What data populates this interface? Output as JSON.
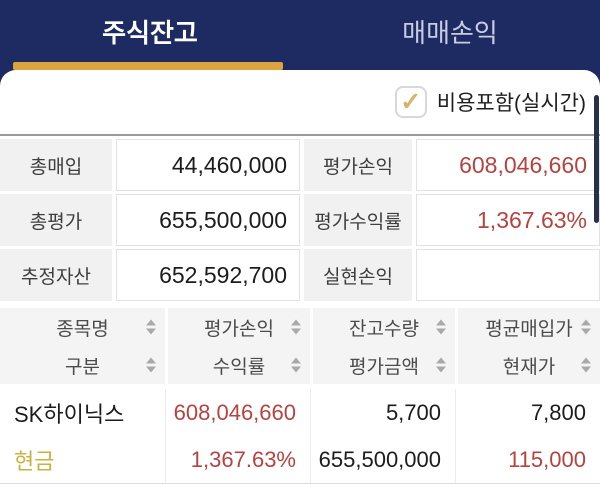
{
  "tabs": {
    "stock_balance": "주식잔고",
    "trading_pl": "매매손익"
  },
  "filter": {
    "checkbox_label": "비용포함(실시간)",
    "checked": true,
    "check_glyph": "✓"
  },
  "summary": {
    "rows": [
      {
        "left_label": "총매입",
        "left_value": "44,460,000",
        "right_label": "평가손익",
        "right_value": "608,046,660"
      },
      {
        "left_label": "총평가",
        "left_value": "655,500,000",
        "right_label": "평가수익률",
        "right_value": "1,367.63%"
      },
      {
        "left_label": "추정자산",
        "left_value": "652,592,700",
        "right_label": "실현손익",
        "right_value": ""
      }
    ]
  },
  "table": {
    "headers": [
      {
        "top": "종목명",
        "bottom": "구분"
      },
      {
        "top": "평가손익",
        "bottom": "수익률"
      },
      {
        "top": "잔고수량",
        "bottom": "평가금액"
      },
      {
        "top": "평균매입가",
        "bottom": "현재가"
      }
    ],
    "rows": [
      {
        "name": "SK하이닉스",
        "category": "현금",
        "eval_pl": "608,046,660",
        "return_rate": "1,367.63%",
        "quantity": "5,700",
        "eval_amount": "655,500,000",
        "avg_buy_price": "7,800",
        "current_price": "115,000"
      }
    ]
  },
  "colors": {
    "navy": "#1e2a62",
    "tab_underline_gold": "#dca43f",
    "profit_red": "#b6433f",
    "cash_gold": "#c9b23f",
    "check_gold": "#d9b168"
  }
}
